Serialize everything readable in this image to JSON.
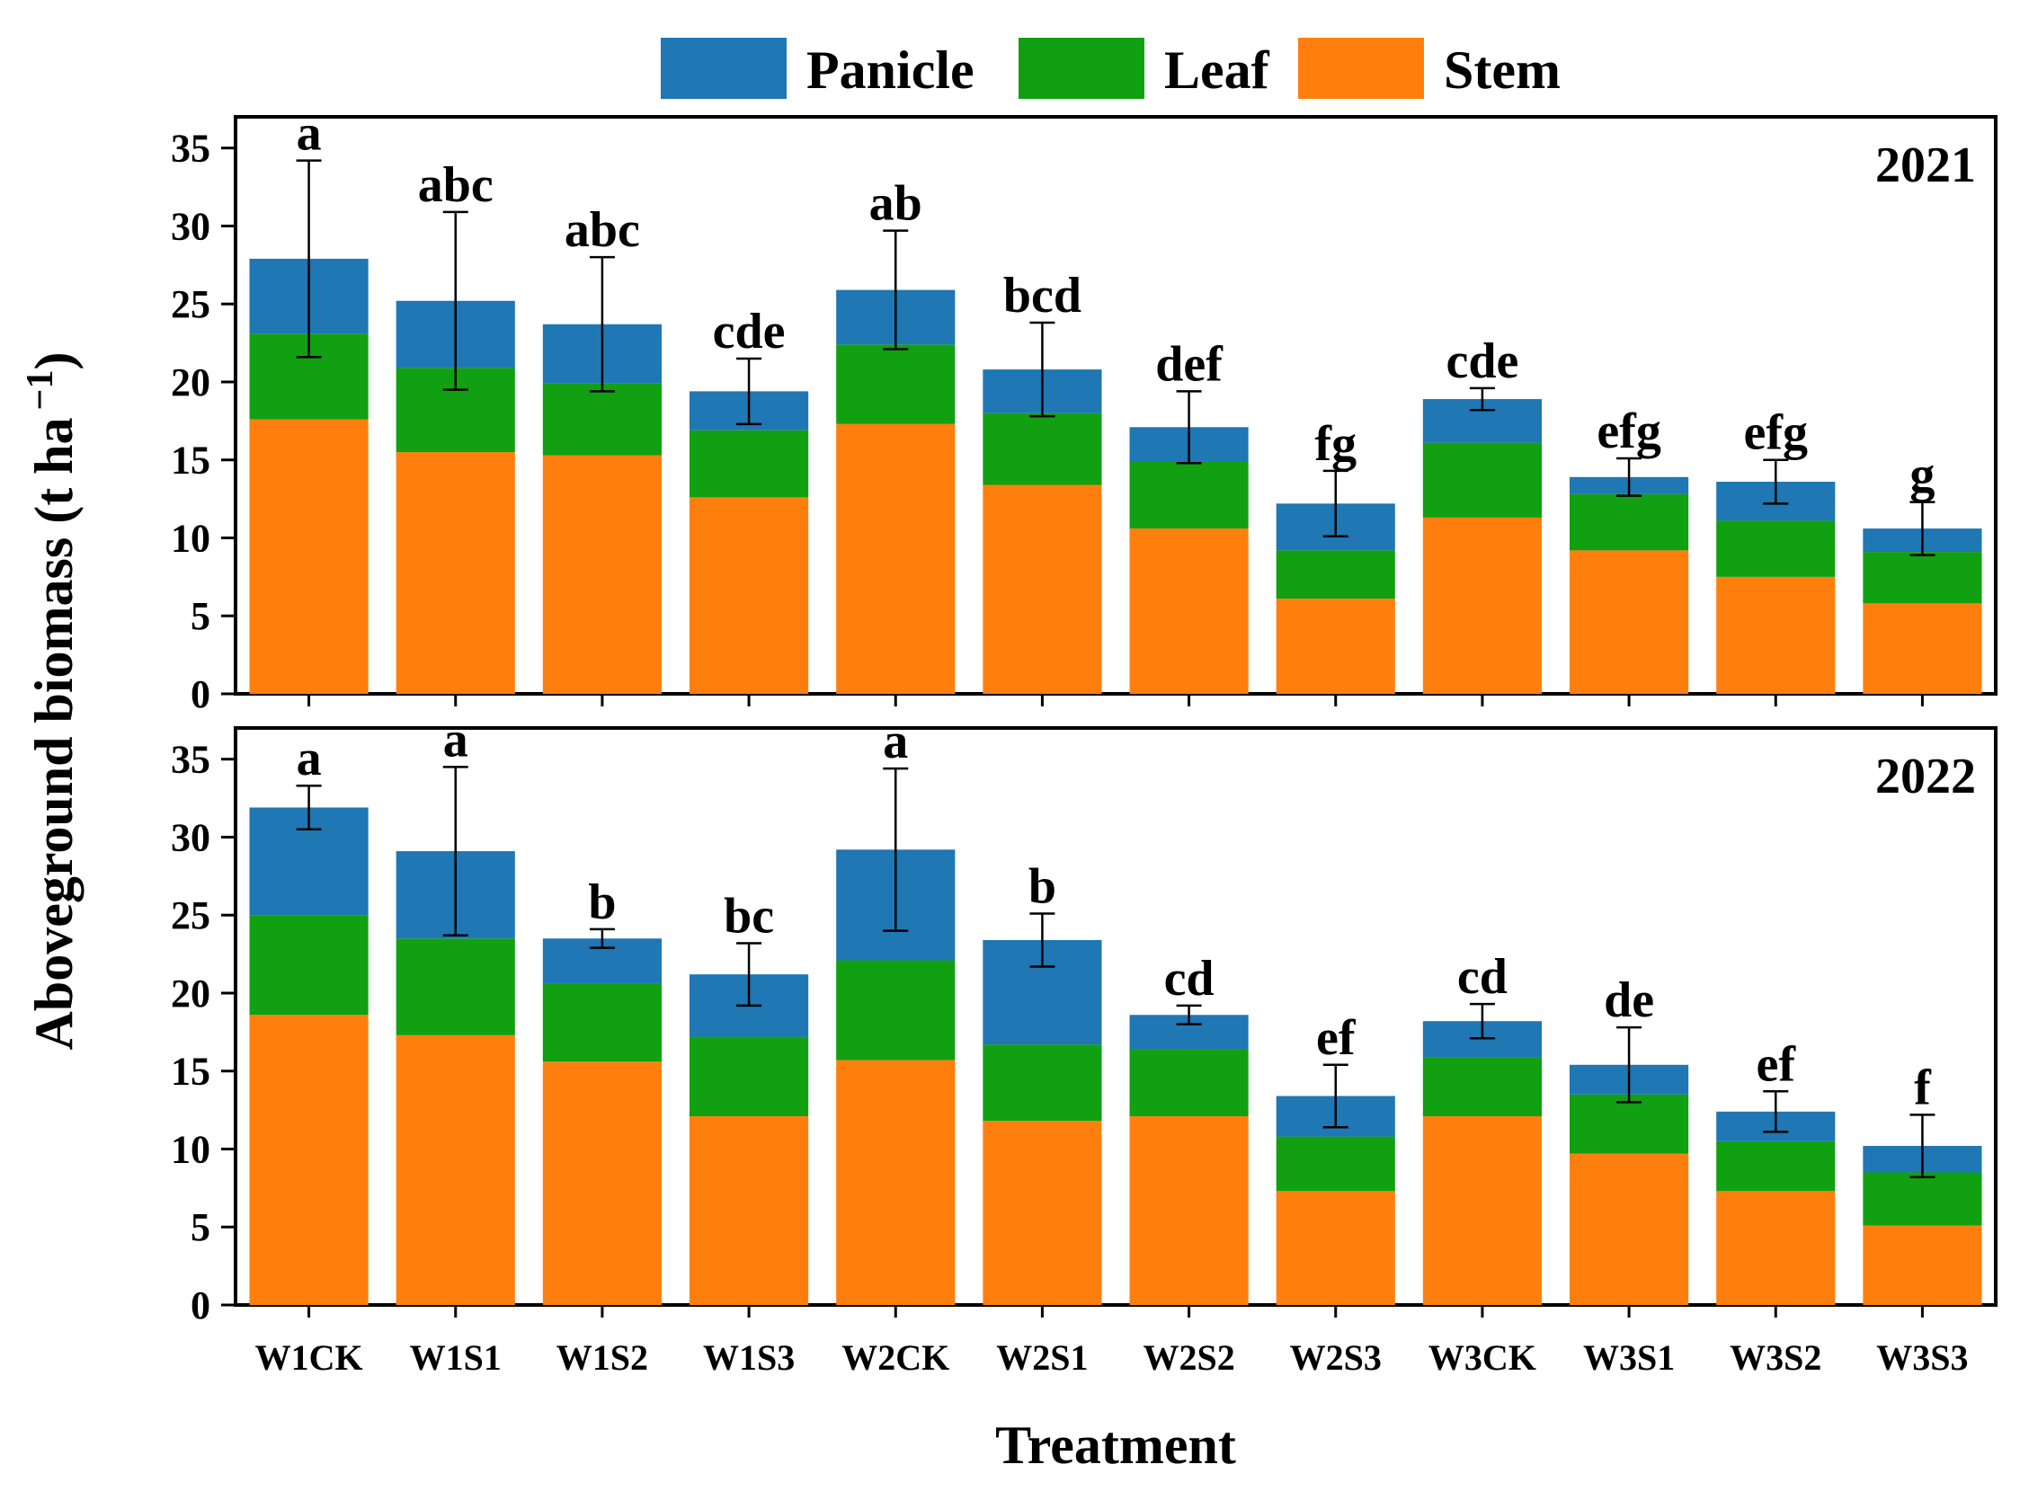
{
  "chart_data": {
    "type": "bar",
    "stacked": true,
    "legend": {
      "position": "top",
      "entries": [
        {
          "name": "Panicle",
          "color": "#1f77b4"
        },
        {
          "name": "Leaf",
          "color": "#11a011"
        },
        {
          "name": "Stem",
          "color": "#ff7f0e"
        }
      ]
    },
    "ylabel": "Aboveground biomass (t ha",
    "ylabel_superscript": "−1",
    "ylabel_close": ")",
    "xlabel": "Treatment",
    "categories": [
      "W1CK",
      "W1S1",
      "W1S2",
      "W1S3",
      "W2CK",
      "W2S1",
      "W2S2",
      "W2S3",
      "W3CK",
      "W3S1",
      "W3S2",
      "W3S3"
    ],
    "ylim": [
      0,
      37
    ],
    "yticks": [
      0,
      5,
      10,
      15,
      20,
      25,
      30,
      35
    ],
    "panels": [
      {
        "year": "2021",
        "stem": [
          17.6,
          15.5,
          15.3,
          12.6,
          17.3,
          13.4,
          10.6,
          6.1,
          11.3,
          9.2,
          7.5,
          5.8
        ],
        "leaf": [
          5.5,
          5.4,
          4.6,
          4.3,
          5.1,
          4.6,
          4.3,
          3.1,
          4.8,
          3.6,
          3.6,
          3.3
        ],
        "panicle": [
          4.8,
          4.3,
          3.8,
          2.5,
          3.5,
          2.8,
          2.2,
          3.0,
          2.8,
          1.1,
          2.5,
          1.5
        ],
        "error": [
          6.3,
          5.7,
          4.3,
          2.1,
          3.8,
          3.0,
          2.3,
          2.1,
          0.7,
          1.2,
          1.4,
          1.7
        ],
        "letters": [
          "a",
          "abc",
          "abc",
          "cde",
          "ab",
          "bcd",
          "def",
          "fg",
          "cde",
          "efg",
          "efg",
          "g"
        ]
      },
      {
        "year": "2022",
        "stem": [
          18.6,
          17.3,
          15.6,
          12.1,
          15.7,
          11.8,
          12.1,
          7.3,
          12.1,
          9.7,
          7.3,
          5.1
        ],
        "leaf": [
          6.4,
          6.2,
          5.0,
          5.1,
          6.4,
          4.9,
          4.3,
          3.5,
          3.8,
          3.8,
          3.2,
          3.4
        ],
        "panicle": [
          6.9,
          5.6,
          2.9,
          4.0,
          7.1,
          6.7,
          2.2,
          2.6,
          2.3,
          1.9,
          1.9,
          1.7
        ],
        "error": [
          1.4,
          5.4,
          0.6,
          2.0,
          5.2,
          1.7,
          0.6,
          2.0,
          1.1,
          2.4,
          1.3,
          2.0
        ],
        "letters": [
          "a",
          "a",
          "b",
          "bc",
          "a",
          "b",
          "cd",
          "ef",
          "cd",
          "de",
          "ef",
          "f"
        ]
      }
    ]
  }
}
